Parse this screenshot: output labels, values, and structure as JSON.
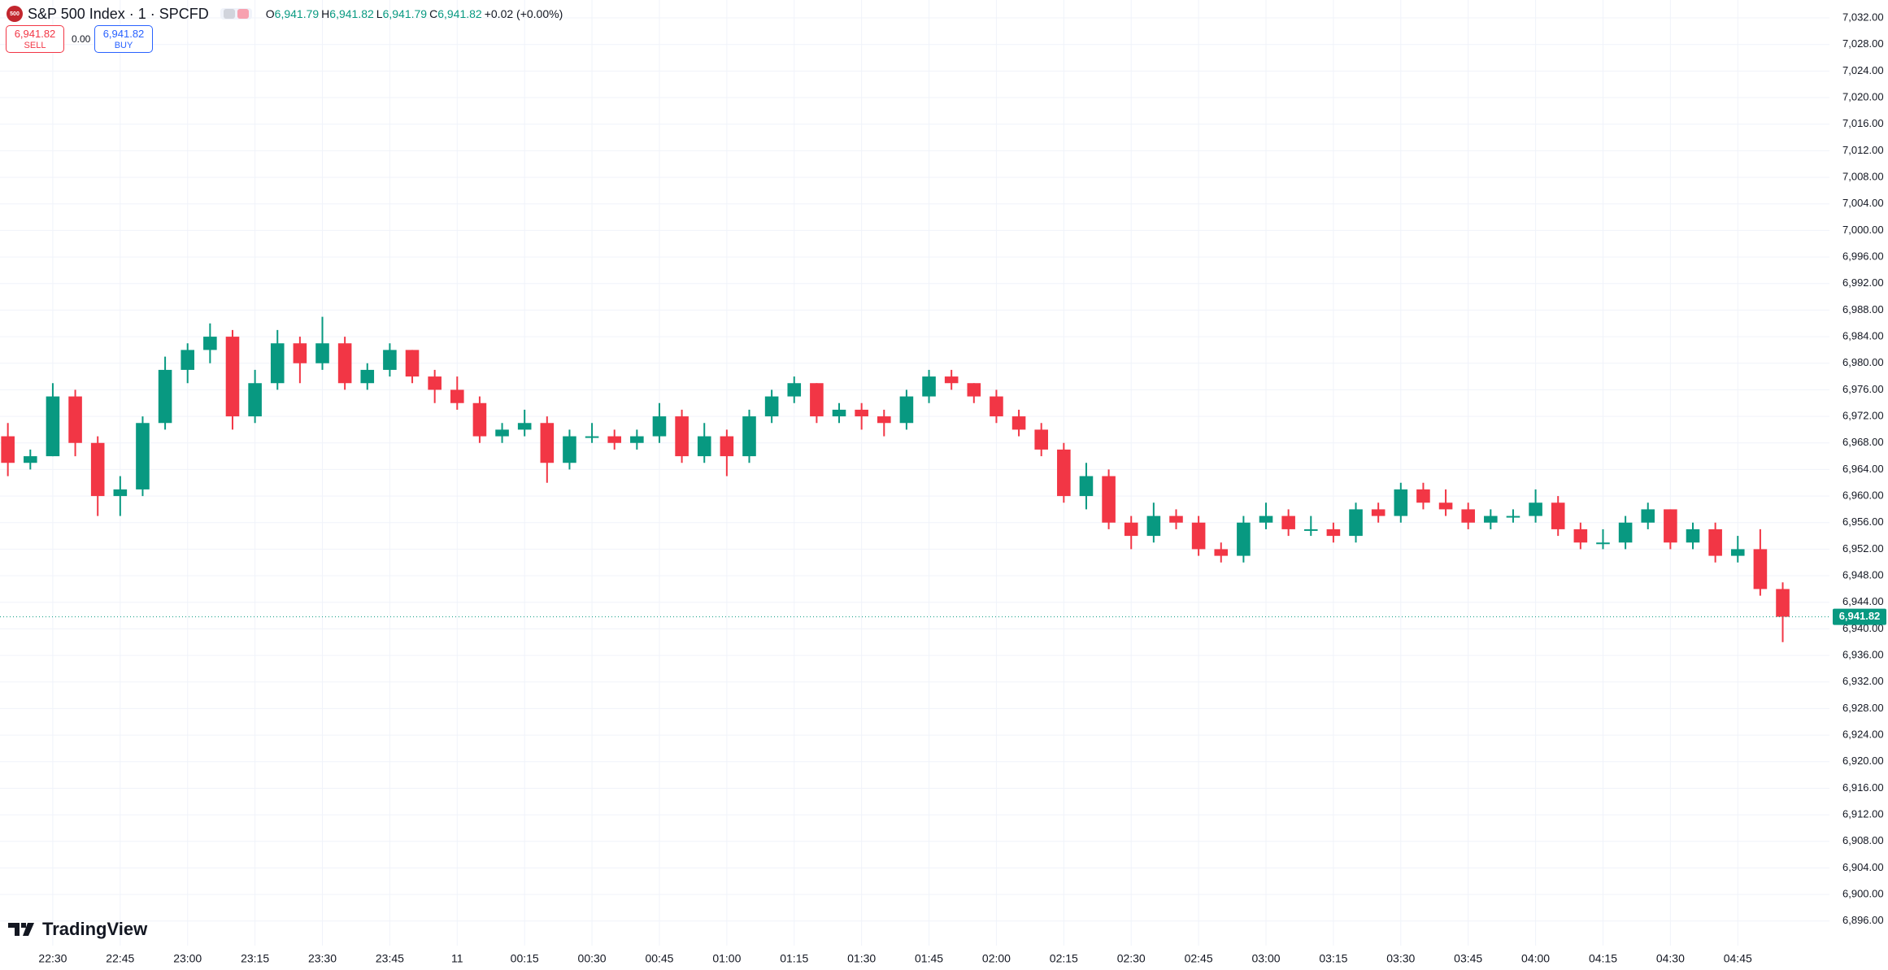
{
  "header": {
    "icon_text": "500",
    "symbol": "S&P 500 Index · 1 · SPCFD",
    "ohlc": [
      {
        "key": "O",
        "text": "6,941.79"
      },
      {
        "key": "H",
        "text": "6,941.82"
      },
      {
        "key": "L",
        "text": "6,941.79"
      },
      {
        "key": "C",
        "text": "6,941.82"
      }
    ],
    "change": "+0.02 (+0.00%)"
  },
  "trade": {
    "sell_price": "6,941.82",
    "sell_label": "SELL",
    "spread": "0.00",
    "buy_price": "6,941.82",
    "buy_label": "BUY"
  },
  "brand": "TradingView",
  "chart_data": {
    "type": "candlestick",
    "up_color": "#089981",
    "down_color": "#f23645",
    "grid": true,
    "open": [
      6969,
      6965,
      6966,
      6975,
      6968,
      6960,
      6961,
      6971,
      6979,
      6982,
      6984,
      6972,
      6977,
      6983,
      6980,
      6983,
      6977,
      6979,
      6982,
      6978,
      6976,
      6974,
      6969,
      6970,
      6971,
      6965,
      6969,
      6969,
      6968,
      6969,
      6972,
      6966,
      6969,
      6966,
      6972,
      6975,
      6977,
      6972,
      6973,
      6972,
      6971,
      6975,
      6978,
      6977,
      6975,
      6972,
      6970,
      6967,
      6960,
      6963,
      6956,
      6954,
      6957,
      6956,
      6952,
      6951,
      6956,
      6957,
      6955,
      6955,
      6954,
      6958,
      6957,
      6961,
      6959,
      6958,
      6956,
      6957,
      6957,
      6959,
      6955,
      6953,
      6953,
      6956,
      6958,
      6953,
      6955,
      6951,
      6952,
      6946
    ],
    "high": [
      6971,
      6967,
      6977,
      6976,
      6969,
      6963,
      6972,
      6981,
      6983,
      6986,
      6985,
      6979,
      6985,
      6984,
      6987,
      6984,
      6980,
      6983,
      6982,
      6979,
      6978,
      6975,
      6971,
      6973,
      6972,
      6970,
      6971,
      6970,
      6970,
      6974,
      6973,
      6971,
      6970,
      6973,
      6976,
      6978,
      6977,
      6974,
      6974,
      6973,
      6976,
      6979,
      6979,
      6977,
      6976,
      6973,
      6971,
      6968,
      6965,
      6964,
      6957,
      6959,
      6958,
      6957,
      6953,
      6957,
      6959,
      6958,
      6957,
      6956,
      6959,
      6959,
      6962,
      6962,
      6961,
      6959,
      6958,
      6958,
      6961,
      6960,
      6956,
      6955,
      6957,
      6959,
      6958,
      6956,
      6956,
      6954,
      6955,
      6947
    ],
    "low": [
      6963,
      6964,
      6966,
      6966,
      6957,
      6957,
      6960,
      6970,
      6977,
      6980,
      6970,
      6971,
      6976,
      6977,
      6979,
      6976,
      6976,
      6978,
      6977,
      6974,
      6973,
      6968,
      6968,
      6969,
      6962,
      6964,
      6968,
      6967,
      6967,
      6968,
      6965,
      6965,
      6963,
      6965,
      6971,
      6974,
      6971,
      6971,
      6970,
      6969,
      6970,
      6974,
      6976,
      6974,
      6971,
      6969,
      6966,
      6959,
      6958,
      6955,
      6952,
      6953,
      6955,
      6951,
      6950,
      6950,
      6955,
      6954,
      6954,
      6953,
      6953,
      6956,
      6956,
      6958,
      6957,
      6955,
      6955,
      6956,
      6956,
      6954,
      6952,
      6952,
      6952,
      6955,
      6952,
      6952,
      6950,
      6950,
      6945,
      6938
    ],
    "close": [
      6965,
      6966,
      6975,
      6968,
      6960,
      6961,
      6971,
      6979,
      6982,
      6984,
      6972,
      6977,
      6983,
      6980,
      6983,
      6977,
      6979,
      6982,
      6978,
      6976,
      6974,
      6969,
      6970,
      6971,
      6965,
      6969,
      6969,
      6968,
      6969,
      6972,
      6966,
      6969,
      6966,
      6972,
      6975,
      6977,
      6972,
      6973,
      6972,
      6971,
      6975,
      6978,
      6977,
      6975,
      6972,
      6970,
      6967,
      6960,
      6963,
      6956,
      6954,
      6957,
      6956,
      6952,
      6951,
      6956,
      6957,
      6955,
      6955,
      6954,
      6958,
      6957,
      6961,
      6959,
      6958,
      6956,
      6957,
      6957,
      6959,
      6955,
      6953,
      6953,
      6956,
      6958,
      6953,
      6955,
      6951,
      6952,
      6946,
      6941.82
    ],
    "last_price": {
      "value": 6941.82,
      "label": "6,941.82"
    },
    "xlim": [
      -0.35,
      81.08
    ],
    "xticks": [
      {
        "value": 2,
        "label": "22:30"
      },
      {
        "value": 5,
        "label": "22:45"
      },
      {
        "value": 8,
        "label": "23:00"
      },
      {
        "value": 11,
        "label": "23:15"
      },
      {
        "value": 14,
        "label": "23:30"
      },
      {
        "value": 17,
        "label": "23:45"
      },
      {
        "value": 20,
        "label": "11"
      },
      {
        "value": 23,
        "label": "00:15"
      },
      {
        "value": 26,
        "label": "00:30"
      },
      {
        "value": 29,
        "label": "00:45"
      },
      {
        "value": 32,
        "label": "01:00"
      },
      {
        "value": 35,
        "label": "01:15"
      },
      {
        "value": 38,
        "label": "01:30"
      },
      {
        "value": 41,
        "label": "01:45"
      },
      {
        "value": 44,
        "label": "02:00"
      },
      {
        "value": 47,
        "label": "02:15"
      },
      {
        "value": 50,
        "label": "02:30"
      },
      {
        "value": 53,
        "label": "02:45"
      },
      {
        "value": 56,
        "label": "03:00"
      },
      {
        "value": 59,
        "label": "03:15"
      },
      {
        "value": 62,
        "label": "03:30"
      },
      {
        "value": 65,
        "label": "03:45"
      },
      {
        "value": 68,
        "label": "04:00"
      },
      {
        "value": 71,
        "label": "04:15"
      },
      {
        "value": 74,
        "label": "04:30"
      },
      {
        "value": 77,
        "label": "04:45"
      }
    ],
    "ylim": [
      6892.3,
      7034.7
    ],
    "yticks": [
      {
        "value": 6896,
        "label": "6,896.00"
      },
      {
        "value": 6900,
        "label": "6,900.00"
      },
      {
        "value": 6904,
        "label": "6,904.00"
      },
      {
        "value": 6908,
        "label": "6,908.00"
      },
      {
        "value": 6912,
        "label": "6,912.00"
      },
      {
        "value": 6916,
        "label": "6,916.00"
      },
      {
        "value": 6920,
        "label": "6,920.00"
      },
      {
        "value": 6924,
        "label": "6,924.00"
      },
      {
        "value": 6928,
        "label": "6,928.00"
      },
      {
        "value": 6932,
        "label": "6,932.00"
      },
      {
        "value": 6936,
        "label": "6,936.00"
      },
      {
        "value": 6940,
        "label": "6,940.00"
      },
      {
        "value": 6944,
        "label": "6,944.00"
      },
      {
        "value": 6948,
        "label": "6,948.00"
      },
      {
        "value": 6952,
        "label": "6,952.00"
      },
      {
        "value": 6956,
        "label": "6,956.00"
      },
      {
        "value": 6960,
        "label": "6,960.00"
      },
      {
        "value": 6964,
        "label": "6,964.00"
      },
      {
        "value": 6968,
        "label": "6,968.00"
      },
      {
        "value": 6972,
        "label": "6,972.00"
      },
      {
        "value": 6976,
        "label": "6,976.00"
      },
      {
        "value": 6980,
        "label": "6,980.00"
      },
      {
        "value": 6984,
        "label": "6,984.00"
      },
      {
        "value": 6988,
        "label": "6,988.00"
      },
      {
        "value": 6992,
        "label": "6,992.00"
      },
      {
        "value": 6996,
        "label": "6,996.00"
      },
      {
        "value": 7000,
        "label": "7,000.00"
      },
      {
        "value": 7004,
        "label": "7,004.00"
      },
      {
        "value": 7008,
        "label": "7,008.00"
      },
      {
        "value": 7012,
        "label": "7,012.00"
      },
      {
        "value": 7016,
        "label": "7,016.00"
      },
      {
        "value": 7020,
        "label": "7,020.00"
      },
      {
        "value": 7024,
        "label": "7,024.00"
      },
      {
        "value": 7028,
        "label": "7,028.00"
      },
      {
        "value": 7032,
        "label": "7,032.00"
      }
    ]
  }
}
